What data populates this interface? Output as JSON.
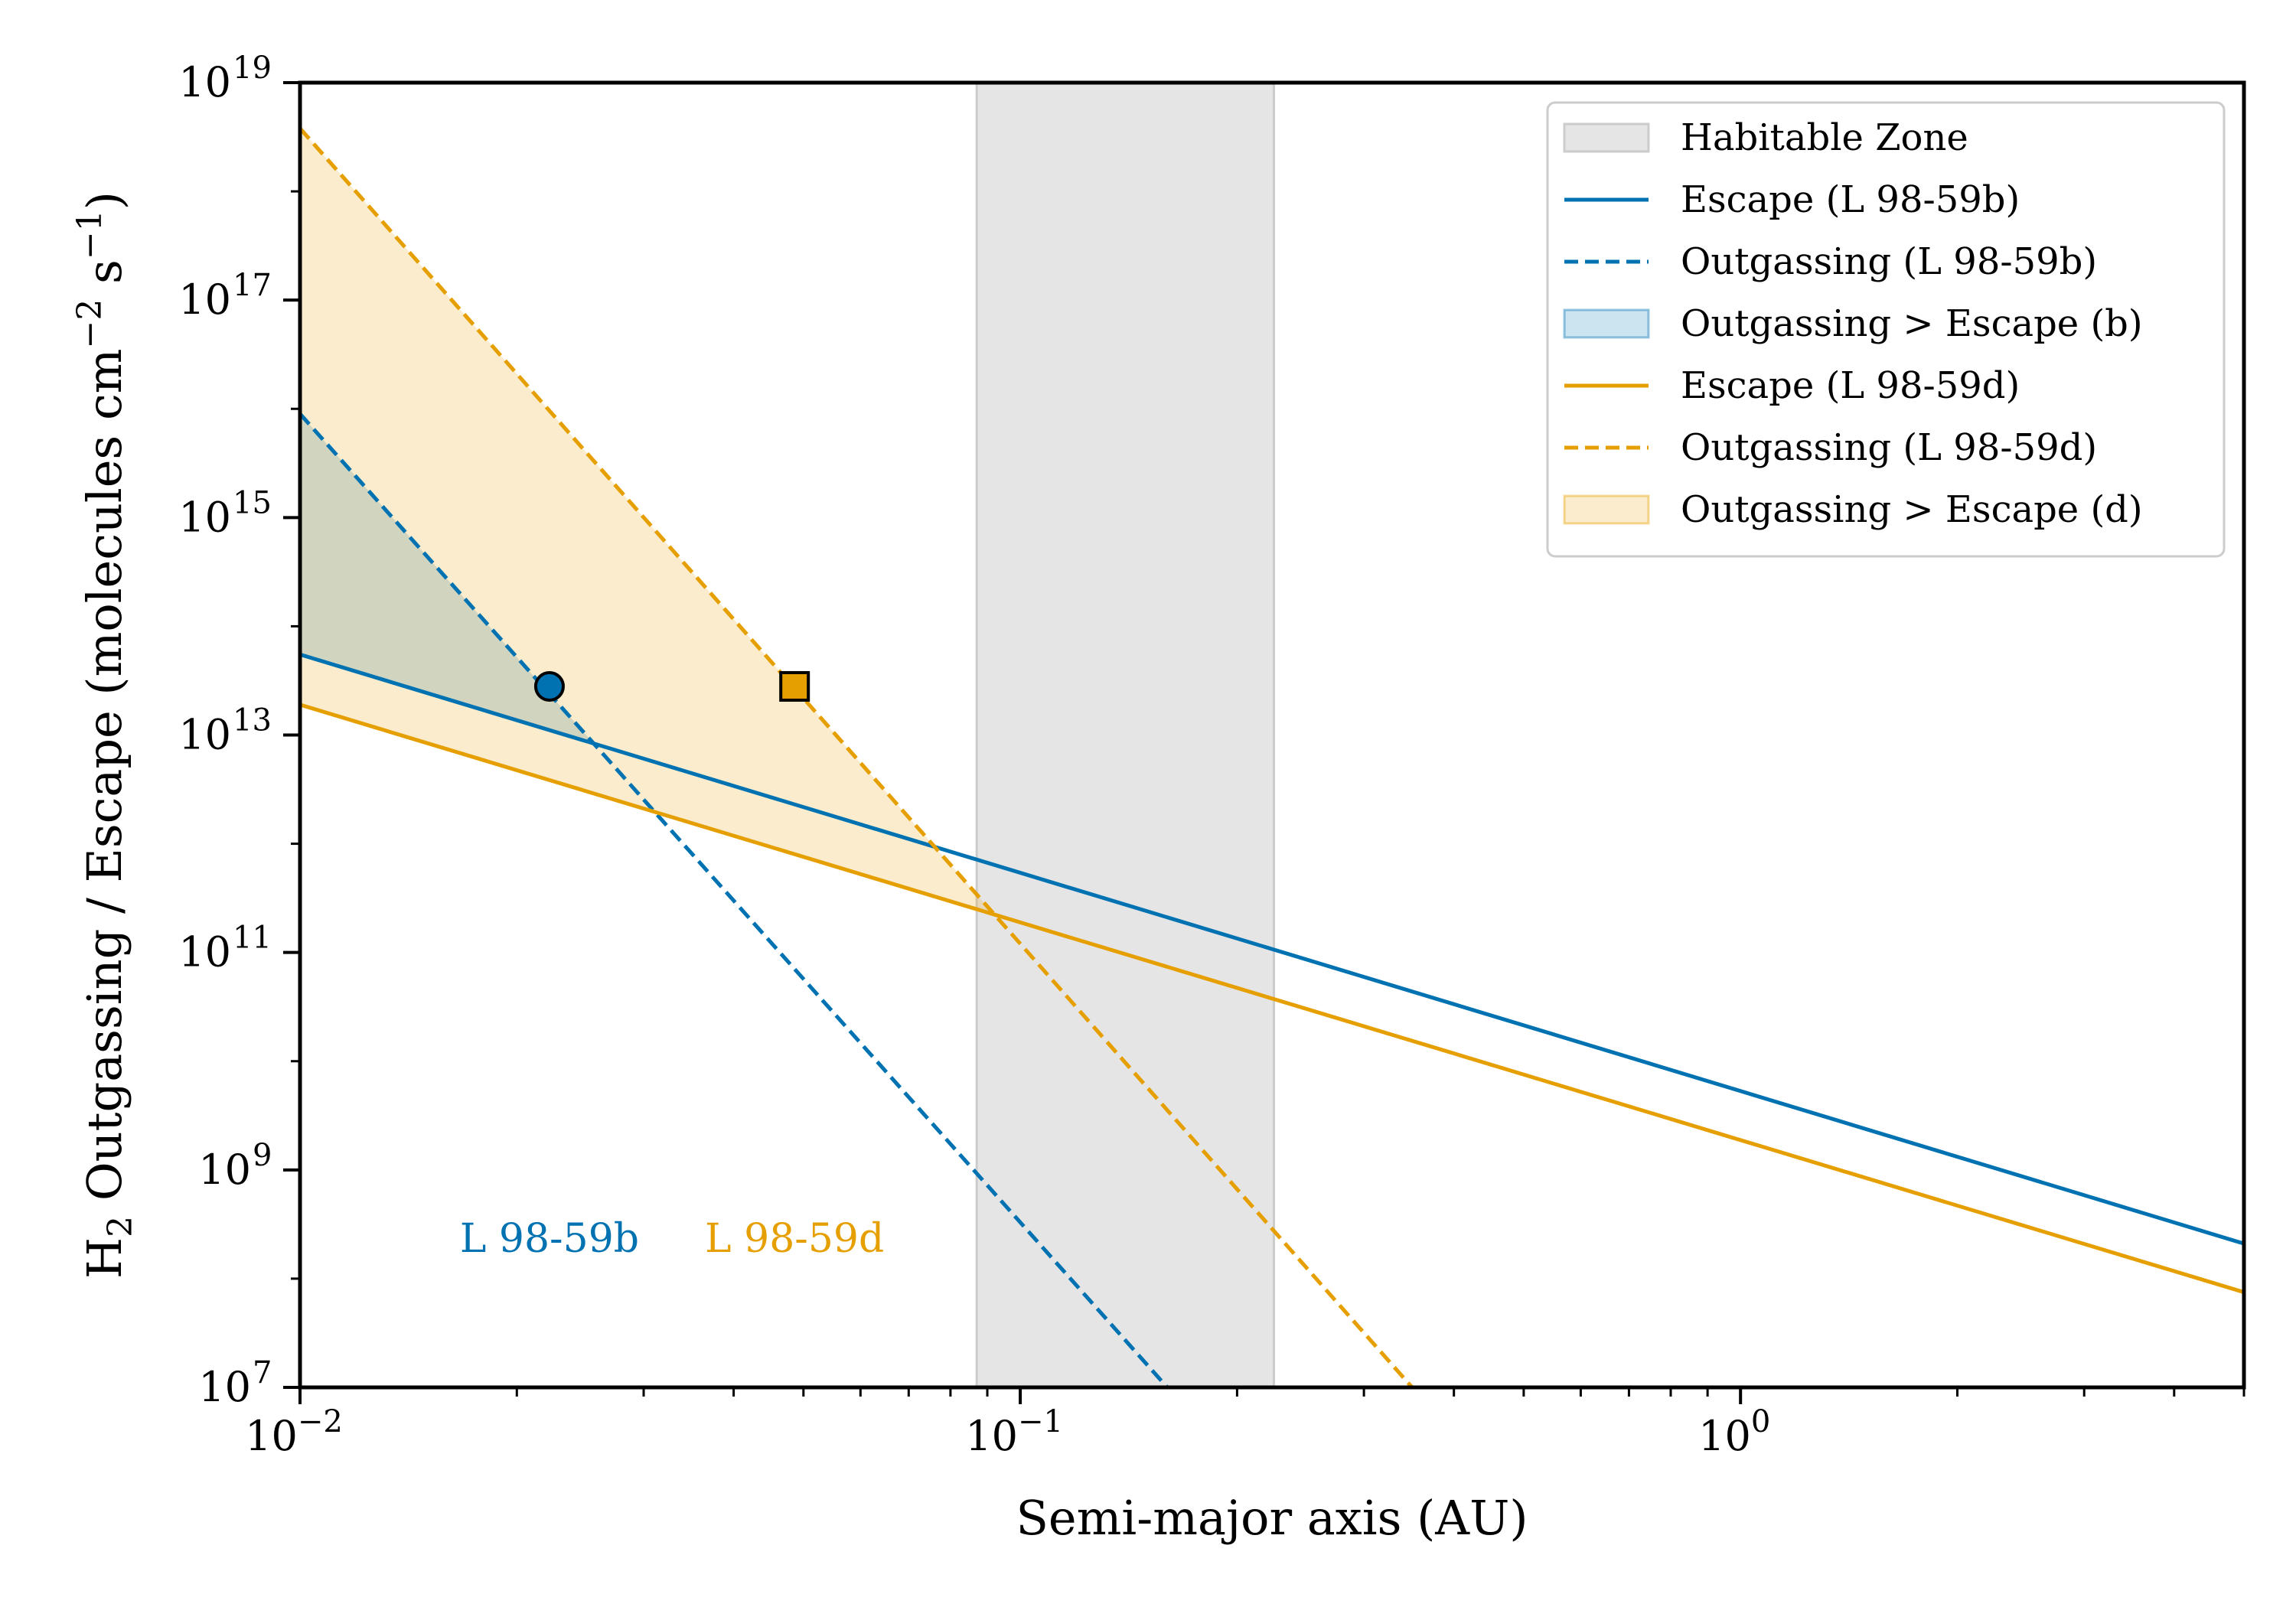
{
  "chart_data": {
    "type": "line",
    "xscale": "log",
    "yscale": "log",
    "xlim": [
      0.01,
      5.0
    ],
    "ylim": [
      10000000.0,
      1e+19
    ],
    "xlabel": "Semi-major axis (AU)",
    "ylabel": {
      "prefix": "H",
      "prefix_sub": "2",
      "main": " Outgassing / Escape (molecules cm",
      "sup1": "−2",
      "mid": " s",
      "sup2": "−1",
      "suffix": ")"
    },
    "x_ticks": [
      {
        "value": 0.01,
        "base": "10",
        "exp": "−2"
      },
      {
        "value": 0.1,
        "base": "10",
        "exp": "−1"
      },
      {
        "value": 1.0,
        "base": "10",
        "exp": "0"
      }
    ],
    "y_ticks": [
      {
        "value": 10000000.0,
        "base": "10",
        "exp": "7"
      },
      {
        "value": 1000000000.0,
        "base": "10",
        "exp": "9"
      },
      {
        "value": 100000000000.0,
        "base": "10",
        "exp": "11"
      },
      {
        "value": 10000000000000.0,
        "base": "10",
        "exp": "13"
      },
      {
        "value": 1000000000000000.0,
        "base": "10",
        "exp": "15"
      },
      {
        "value": 1e+17,
        "base": "10",
        "exp": "17"
      },
      {
        "value": 1e+19,
        "base": "10",
        "exp": "19"
      }
    ],
    "habitable_zone": {
      "x_range": [
        0.087,
        0.225
      ],
      "color": "#e5e5e5",
      "label": "Habitable Zone"
    },
    "series": [
      {
        "name": "Escape (L 98-59b)",
        "style": "solid",
        "color": "#0072b2",
        "x": [
          0.01,
          5.0
        ],
        "y": [
          55000000000000.0,
          210000000.0
        ]
      },
      {
        "name": "Outgassing (L 98-59b)",
        "style": "dashed",
        "color": "#0072b2",
        "x": [
          0.01,
          0.16
        ],
        "y": [
          9000000000000000.0,
          10000000.0
        ]
      },
      {
        "name": "Escape (L 98-59d)",
        "style": "solid",
        "color": "#e69f00",
        "x": [
          0.01,
          5.0
        ],
        "y": [
          19000000000000.0,
          75000000.0
        ]
      },
      {
        "name": "Outgassing (L 98-59d)",
        "style": "dashed",
        "color": "#e69f00",
        "x": [
          0.01,
          0.35
        ],
        "y": [
          3.8e+18,
          10000000.0
        ]
      }
    ],
    "fills": [
      {
        "name": "Outgassing > Escape (b)",
        "color": "#0072b2",
        "opacity": 0.2,
        "upper": "Outgassing (L 98-59b)",
        "lower": "Escape (L 98-59b)"
      },
      {
        "name": "Outgassing > Escape (d)",
        "color": "#e69f00",
        "opacity": 0.2,
        "upper": "Outgassing (L 98-59d)",
        "lower": "Escape (L 98-59d)"
      }
    ],
    "markers": [
      {
        "name": "L 98-59b",
        "shape": "circle",
        "color": "#0072b2",
        "x": 0.0222,
        "y": 28000000000000.0
      },
      {
        "name": "L 98-59d",
        "shape": "square",
        "color": "#e69f00",
        "x": 0.0486,
        "y": 28000000000000.0
      }
    ],
    "annotations": [
      {
        "text": "L 98-59b",
        "color": "#0072b2",
        "x": 0.0222,
        "y": 220000000.0
      },
      {
        "text": "L 98-59d",
        "color": "#e69f00",
        "x": 0.0486,
        "y": 220000000.0
      }
    ],
    "legend": {
      "position": "top-right",
      "entries": [
        {
          "label": "Habitable Zone",
          "kind": "patch",
          "color": "#e5e5e5"
        },
        {
          "label": "Escape (L 98-59b)",
          "kind": "solid",
          "color": "#0072b2"
        },
        {
          "label": "Outgassing (L 98-59b)",
          "kind": "dashed",
          "color": "#0072b2"
        },
        {
          "label": "Outgassing > Escape (b)",
          "kind": "patch",
          "color": "#0072b2"
        },
        {
          "label": "Escape (L 98-59d)",
          "kind": "solid",
          "color": "#e69f00"
        },
        {
          "label": "Outgassing (L 98-59d)",
          "kind": "dashed",
          "color": "#e69f00"
        },
        {
          "label": "Outgassing > Escape (d)",
          "kind": "patch",
          "color": "#e69f00"
        }
      ]
    }
  }
}
